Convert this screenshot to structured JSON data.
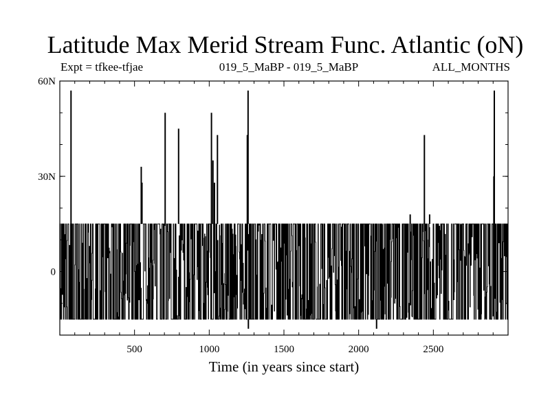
{
  "chart_data": {
    "type": "line",
    "title": "Latitude Max Merid Stream Func. Atlantic (oN)",
    "subtitle_left": "Expt = tfkee-tfjae",
    "subtitle_center": "019_5_MaBP - 019_5_MaBP",
    "subtitle_right": "ALL_MONTHS",
    "xlabel": "Time (in years since start)",
    "ylabel": "",
    "xlim": [
      0,
      3000
    ],
    "ylim": [
      -20,
      60
    ],
    "x_ticks": [
      {
        "value": 500,
        "label": "500"
      },
      {
        "value": 1000,
        "label": "1000"
      },
      {
        "value": 1500,
        "label": "1500"
      },
      {
        "value": 2000,
        "label": "2000"
      },
      {
        "value": 2500,
        "label": "2500"
      }
    ],
    "y_ticks": [
      {
        "value": 60,
        "label": "60N"
      },
      {
        "value": 30,
        "label": "30N"
      },
      {
        "value": 0,
        "label": "0"
      }
    ],
    "series": [
      {
        "color": "#000000",
        "baseline_band": {
          "x_range": [
            0,
            3000
          ],
          "y_min": -15,
          "y_max": 15
        },
        "spikes": [
          {
            "x": 75,
            "y": 57
          },
          {
            "x": 545,
            "y": 33
          },
          {
            "x": 550,
            "y": 28
          },
          {
            "x": 705,
            "y": 50
          },
          {
            "x": 795,
            "y": 45
          },
          {
            "x": 1015,
            "y": 50
          },
          {
            "x": 1025,
            "y": 35
          },
          {
            "x": 1035,
            "y": 28
          },
          {
            "x": 1055,
            "y": 43
          },
          {
            "x": 1255,
            "y": 43
          },
          {
            "x": 1260,
            "y": 57
          },
          {
            "x": 1262,
            "y": -18
          },
          {
            "x": 2120,
            "y": -18
          },
          {
            "x": 2345,
            "y": 18
          },
          {
            "x": 2440,
            "y": 43
          },
          {
            "x": 2475,
            "y": 18
          },
          {
            "x": 2905,
            "y": 30
          },
          {
            "x": 2908,
            "y": 57
          }
        ]
      }
    ]
  }
}
